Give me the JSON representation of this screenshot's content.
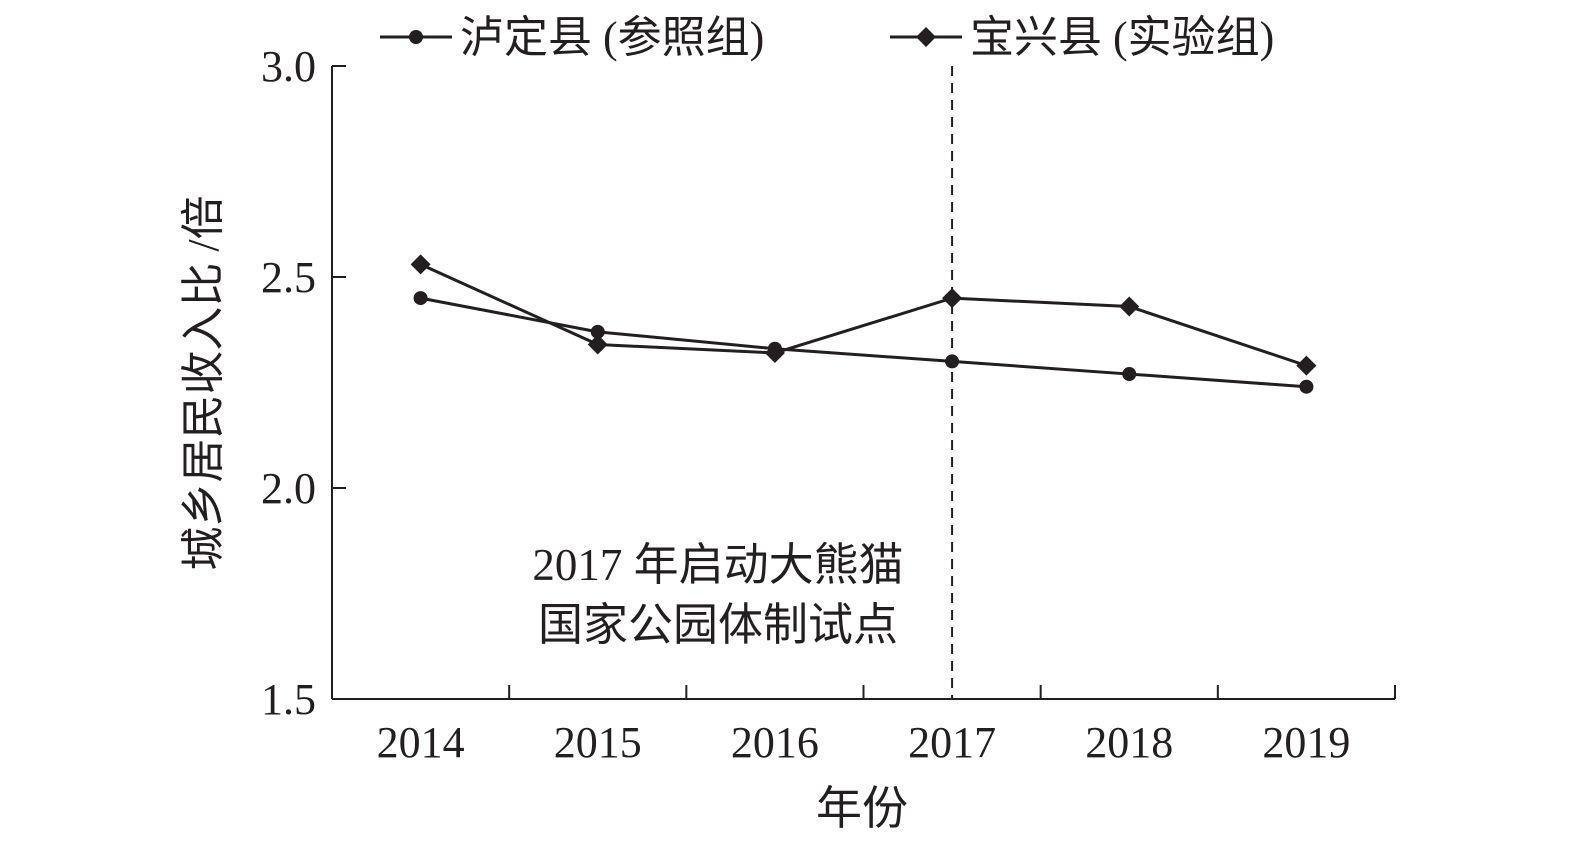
{
  "chart_data": {
    "type": "line",
    "title": "",
    "xlabel": "年份",
    "ylabel": "城乡居民收入比 /倍",
    "categories": [
      "2014",
      "2015",
      "2016",
      "2017",
      "2018",
      "2019"
    ],
    "ylim": [
      1.5,
      3.0
    ],
    "yticks": [
      "1.5",
      "2.0",
      "2.5",
      "3.0"
    ],
    "grid": false,
    "legend_position": "top",
    "series": [
      {
        "name": "泸定县 (参照组)",
        "marker": "circle",
        "color": "#231f20",
        "values": [
          2.45,
          2.37,
          2.33,
          2.3,
          2.27,
          2.24
        ]
      },
      {
        "name": "宝兴县 (实验组)",
        "marker": "diamond",
        "color": "#231f20",
        "values": [
          2.53,
          2.34,
          2.32,
          2.45,
          2.43,
          2.29
        ]
      }
    ],
    "reference_line": {
      "x": "2017",
      "style": "dashed"
    },
    "annotation": {
      "lines": [
        "2017 年启动大熊猫",
        "国家公园体制试点"
      ]
    }
  }
}
